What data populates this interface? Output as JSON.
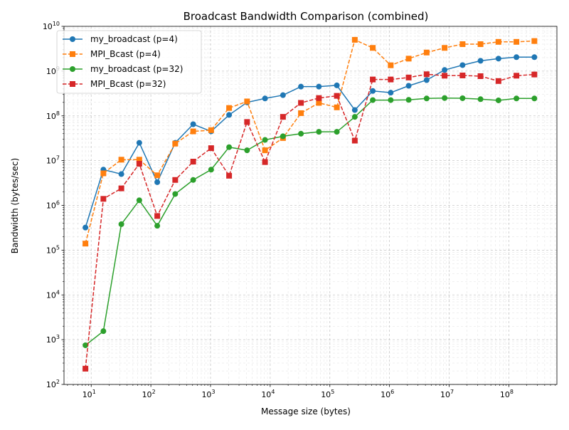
{
  "chart_data": {
    "type": "line",
    "title": "Broadcast Bandwidth Comparison (combined)",
    "xlabel": "Message size (bytes)",
    "ylabel": "Bandwidth (bytes/sec)",
    "xscale": "log",
    "yscale": "log",
    "xlim": [
      3.5,
      640000000
    ],
    "ylim": [
      100,
      10000000000
    ],
    "x_major_ticks": [
      {
        "base": "10",
        "exp": "1"
      },
      {
        "base": "10",
        "exp": "2"
      },
      {
        "base": "10",
        "exp": "3"
      },
      {
        "base": "10",
        "exp": "4"
      },
      {
        "base": "10",
        "exp": "5"
      },
      {
        "base": "10",
        "exp": "6"
      },
      {
        "base": "10",
        "exp": "7"
      },
      {
        "base": "10",
        "exp": "8"
      }
    ],
    "y_major_ticks": [
      {
        "base": "10",
        "exp": "2"
      },
      {
        "base": "10",
        "exp": "3"
      },
      {
        "base": "10",
        "exp": "4"
      },
      {
        "base": "10",
        "exp": "5"
      },
      {
        "base": "10",
        "exp": "6"
      },
      {
        "base": "10",
        "exp": "7"
      },
      {
        "base": "10",
        "exp": "8"
      },
      {
        "base": "10",
        "exp": "9"
      },
      {
        "base": "10",
        "exp": "10"
      }
    ],
    "grid": true,
    "legend_position": "upper-left",
    "x": [
      8,
      16,
      32,
      64,
      128,
      256,
      512,
      1024,
      2048,
      4096,
      8192,
      16384,
      32768,
      65536,
      131072,
      262144,
      524288,
      1048576,
      2097152,
      4194304,
      8388608,
      16777216,
      33554432,
      67108864,
      134217728,
      268435456
    ],
    "series": [
      {
        "name": "my_broadcast (p=4)",
        "color": "#1f77b4",
        "linestyle": "solid",
        "marker": "circle",
        "values": [
          320000,
          6300000,
          5000000,
          25000000,
          3300000,
          25000000,
          65000000,
          45000000,
          105000000,
          200000000,
          245000000,
          290000000,
          450000000,
          450000000,
          480000000,
          135000000,
          360000000,
          330000000,
          470000000,
          630000000,
          1060000000,
          1360000000,
          1700000000,
          1900000000,
          2050000000,
          2050000000
        ]
      },
      {
        "name": "MPI_Bcast   (p=4)",
        "color": "#ff7f0e",
        "linestyle": "dashed",
        "marker": "square",
        "values": [
          140000,
          5200000,
          10500000,
          10500000,
          4700000,
          24000000,
          45000000,
          48000000,
          150000000,
          210000000,
          17000000,
          32000000,
          115000000,
          195000000,
          155000000,
          5000000000,
          3300000000,
          1350000000,
          1900000000,
          2600000000,
          3300000000,
          4000000000,
          4000000000,
          4500000000,
          4500000000,
          4700000000
        ]
      },
      {
        "name": "my_broadcast (p=32)",
        "color": "#2ca02c",
        "linestyle": "solid",
        "marker": "circle",
        "values": [
          750,
          1550,
          380000,
          1300000,
          350000,
          1800000,
          3700000,
          6300000,
          20000000,
          17000000,
          29000000,
          35000000,
          40000000,
          44000000,
          44000000,
          95000000,
          225000000,
          225000000,
          228000000,
          245000000,
          250000000,
          248000000,
          236000000,
          222000000,
          245000000,
          245000000
        ]
      },
      {
        "name": "MPI_Bcast   (p=32)",
        "color": "#d62728",
        "linestyle": "dashed",
        "marker": "square",
        "values": [
          225,
          1400000,
          2400000,
          8500000,
          580000,
          3700000,
          9500000,
          19000000,
          4600000,
          73000000,
          9300000,
          95000000,
          195000000,
          250000000,
          280000000,
          28000000,
          650000000,
          650000000,
          720000000,
          850000000,
          790000000,
          800000000,
          770000000,
          600000000,
          790000000,
          840000000
        ]
      }
    ]
  }
}
